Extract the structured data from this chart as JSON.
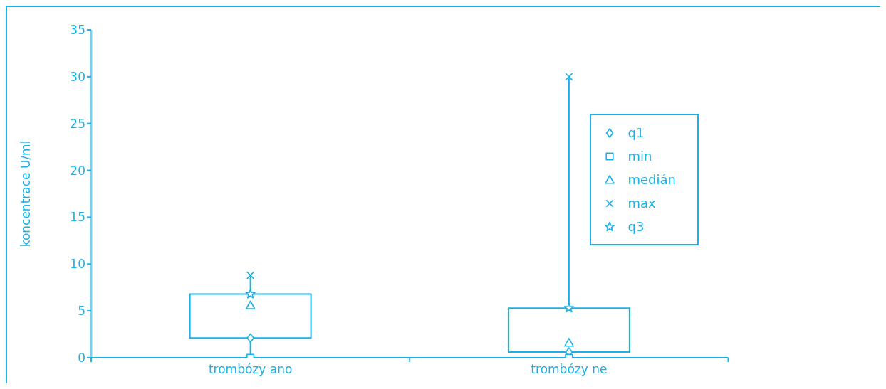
{
  "chart_data": {
    "type": "box",
    "ylabel": "koncentrace U/ml",
    "categories": [
      "trombózy ano",
      "trombózy ne"
    ],
    "ylim": [
      0,
      35
    ],
    "yticks": [
      0,
      5,
      10,
      15,
      20,
      25,
      30,
      35
    ],
    "grid": false,
    "legend": "right",
    "color": "#1ab0e8",
    "boxes": [
      {
        "low": 0,
        "q1": 2.1,
        "q3": 6.8,
        "high": 8.8
      },
      {
        "low": 0,
        "q1": 0.6,
        "q3": 5.3,
        "high": 30
      }
    ],
    "series": [
      {
        "name": "q1",
        "type": "scatter",
        "marker": "diamond",
        "color": "#1ab0e8",
        "values": [
          2.1,
          0.6
        ]
      },
      {
        "name": "min",
        "type": "scatter",
        "marker": "square",
        "color": "#1ab0e8",
        "values": [
          0,
          0
        ]
      },
      {
        "name": "medián",
        "type": "scatter",
        "marker": "triangle",
        "color": "#1ab0e8",
        "values": [
          5.6,
          1.6
        ]
      },
      {
        "name": "max",
        "type": "scatter",
        "marker": "cross",
        "color": "#1ab0e8",
        "values": [
          8.8,
          30
        ]
      },
      {
        "name": "q3",
        "type": "scatter",
        "marker": "star",
        "color": "#1ab0e8",
        "values": [
          6.8,
          5.3
        ]
      }
    ]
  }
}
